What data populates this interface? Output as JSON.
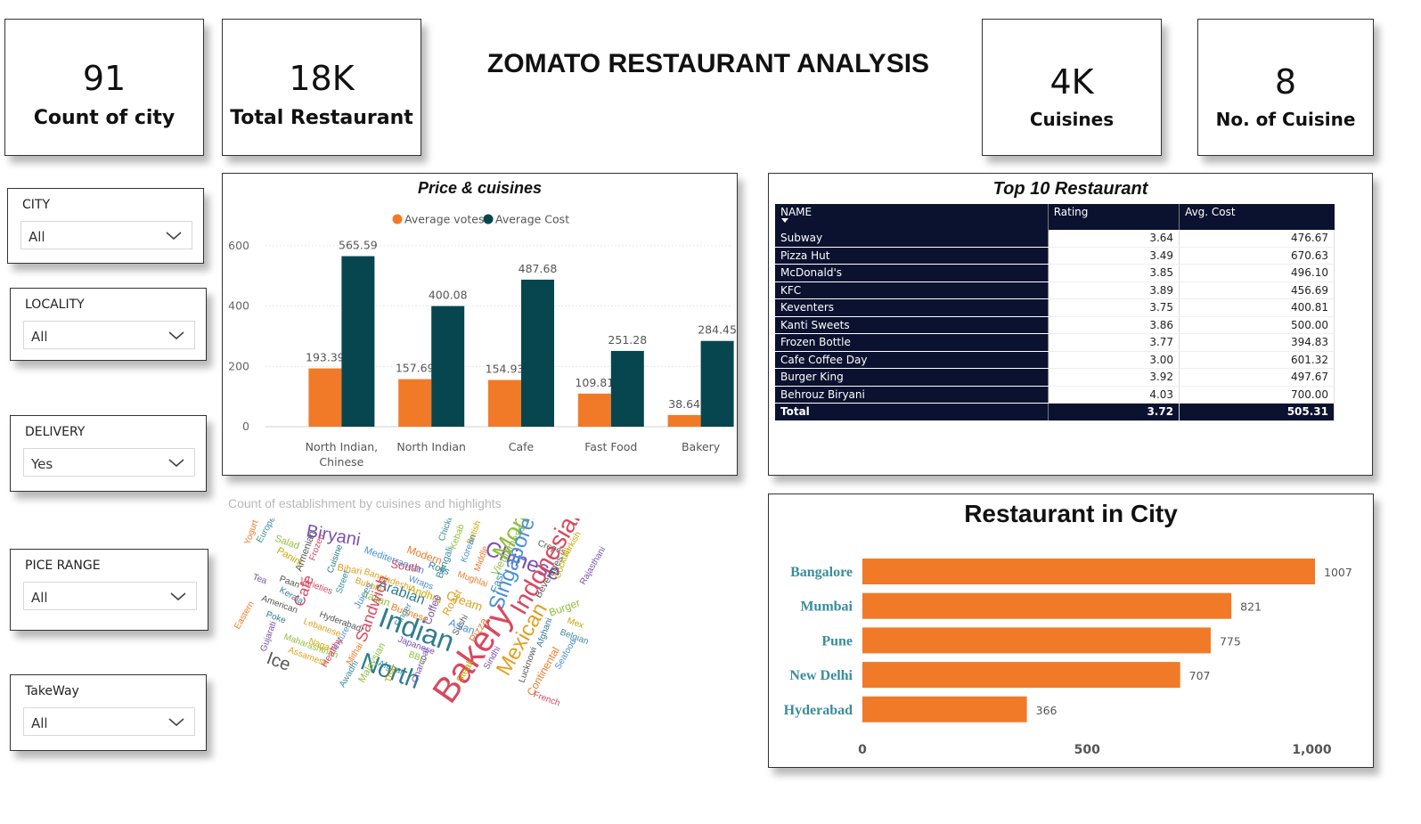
{
  "title": "ZOMATO RESTAURANT ANALYSIS",
  "kpis": [
    {
      "value": "91",
      "label": "Count of city"
    },
    {
      "value": "18K",
      "label": "Total Restaurant"
    },
    {
      "value": "4K",
      "label": "Cuisines"
    },
    {
      "value": "8",
      "label": "No. of Cuisine"
    }
  ],
  "slicers": [
    {
      "title": "CITY",
      "value": "All"
    },
    {
      "title": "LOCALITY",
      "value": "All"
    },
    {
      "title": "DELIVERY",
      "value": "Yes"
    },
    {
      "title": "PICE RANGE",
      "value": "All"
    },
    {
      "title": "TakeWay",
      "value": "All"
    }
  ],
  "colors": {
    "orange": "#f07a28",
    "teal": "#08464f",
    "navy": "#0b1230",
    "city_label": "#3a8d9b"
  },
  "table": {
    "title": "Top 10 Restaurant",
    "headers": [
      "NAME",
      "Rating",
      "Avg. Cost"
    ],
    "rows": [
      [
        "Subway",
        "3.64",
        "476.67"
      ],
      [
        "Pizza Hut",
        "3.49",
        "670.63"
      ],
      [
        "McDonald's",
        "3.85",
        "496.10"
      ],
      [
        "KFC",
        "3.89",
        "456.69"
      ],
      [
        "Keventers",
        "3.75",
        "400.81"
      ],
      [
        "Kanti Sweets",
        "3.86",
        "500.00"
      ],
      [
        "Frozen Bottle",
        "3.77",
        "394.83"
      ],
      [
        "Cafe Coffee Day",
        "3.00",
        "601.32"
      ],
      [
        "Burger King",
        "3.92",
        "497.67"
      ],
      [
        "Behrouz Biryani",
        "4.03",
        "700.00"
      ]
    ],
    "total": [
      "Total",
      "3.72",
      "505.31"
    ]
  },
  "wordcloud": {
    "caption": "Count of establishment by cuisines and highlights",
    "words": [
      "Yogurt",
      "European",
      "Salad",
      "Panini",
      "Biryani",
      "Armenian",
      "Frozen",
      "Cuisine",
      "Bihari",
      "Mediterranean",
      "Modern",
      "Chicken",
      "Kebab",
      "British",
      "Chinese",
      "Crepes",
      "South",
      "Rolls",
      "Bangladeshi",
      "Korean",
      "Middle",
      "Bengali",
      "Vietnamese",
      "Turkish",
      "Tea",
      "Paan",
      "Varieties",
      "Kerala",
      "Bubble",
      "Wraps",
      "Mughlai",
      "Fast",
      "Momos",
      "Cocktail",
      "Rajasthani",
      "American",
      "Cafe",
      "Arabian",
      "Cream",
      "Singaporean",
      "Eastern",
      "Street",
      "Italian",
      "Andhra",
      "Coffee",
      "Beverages",
      "Indonesian",
      "Poke",
      "Lebanese",
      "Juices",
      "Burmese",
      "Finger",
      "Burger",
      "Mex",
      "Gujarati",
      "Hyderabadi",
      "Sandwich",
      "Indian",
      "Roast",
      "Asian",
      "Pizza",
      "Belgian",
      "Maharashtrian",
      "Naga",
      "Japanese",
      "Sushi",
      "Bakery",
      "Afghani",
      "Assamese",
      "Texture",
      "Mithai",
      "Afghan",
      "BBQ",
      "Steak",
      "Sindhi",
      "Ice",
      "Healthy",
      "North",
      "Mexican",
      "Seafood",
      "Continental",
      "Awadhi",
      "Malaysian",
      "Thai",
      "Charcoal",
      "Lucknowi",
      "French"
    ]
  },
  "chart_data": [
    {
      "type": "bar",
      "title": "Price & cuisines",
      "categories": [
        "North Indian, Chinese",
        "North Indian",
        "Cafe",
        "Fast Food",
        "Bakery"
      ],
      "series": [
        {
          "name": "Average votes",
          "values": [
            193.39,
            157.69,
            154.93,
            109.81,
            38.64
          ],
          "color": "#f07a28"
        },
        {
          "name": "Average Cost",
          "values": [
            565.59,
            400.08,
            487.68,
            251.28,
            284.45
          ],
          "color": "#08464f"
        }
      ],
      "yticks": [
        0,
        200,
        400,
        600
      ],
      "ylim": [
        0,
        650
      ],
      "legend": "top-center",
      "grid": true
    },
    {
      "type": "bar",
      "orientation": "horizontal",
      "title": "Restaurant in City",
      "categories": [
        "Bangalore",
        "Mumbai",
        "Pune",
        "New Delhi",
        "Hyderabad"
      ],
      "values": [
        1007,
        821,
        775,
        707,
        366
      ],
      "xticks": [
        "0",
        "500",
        "1,000"
      ],
      "xtick_values": [
        0,
        500,
        1000
      ],
      "xlim": [
        0,
        1007
      ],
      "color": "#f07a28"
    }
  ]
}
